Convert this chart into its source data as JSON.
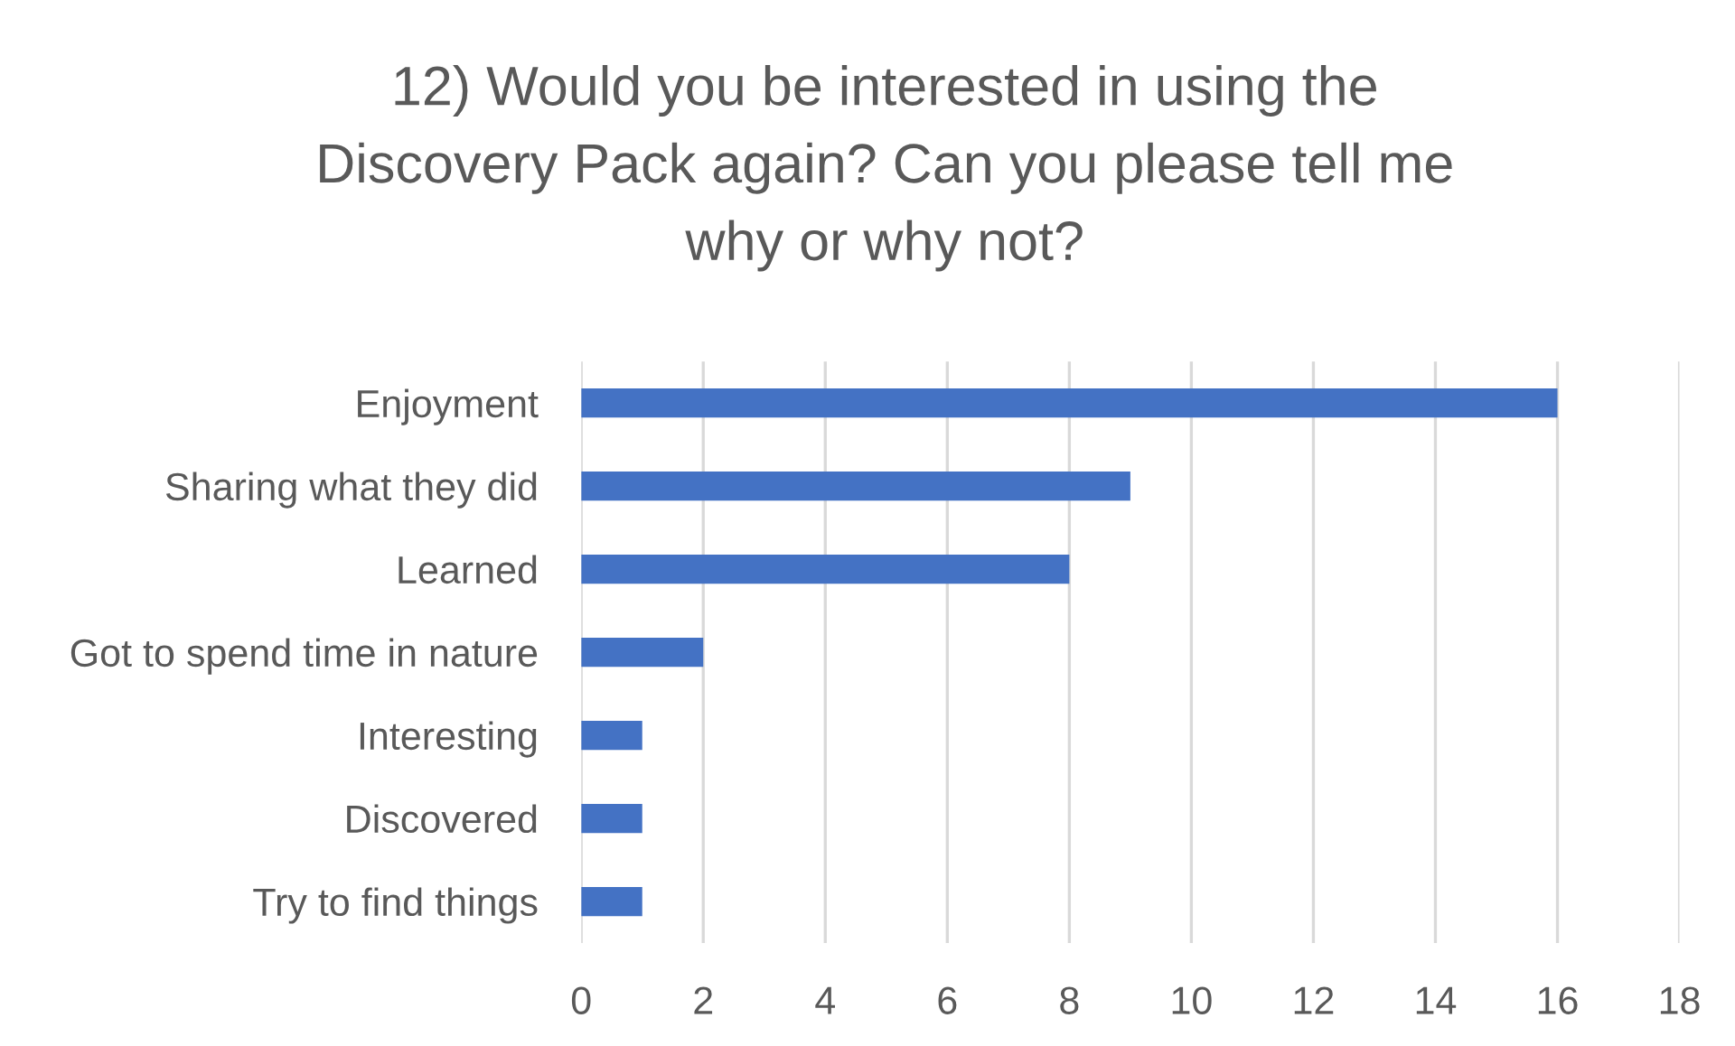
{
  "chart_data": {
    "type": "bar",
    "orientation": "horizontal",
    "title": "12) Would you be interested in using the Discovery Pack again? Can you please tell me why or why not?",
    "categories": [
      "Enjoyment",
      "Sharing what they did",
      "Learned",
      "Got to spend time in nature",
      "Interesting",
      "Discovered",
      "Try to find things"
    ],
    "values": [
      16,
      9,
      8,
      2,
      1,
      1,
      1
    ],
    "color": "#4472c4",
    "xlim": [
      0,
      18
    ],
    "xticks": [
      0,
      2,
      4,
      6,
      8,
      10,
      12,
      14,
      16,
      18
    ],
    "grid": "x",
    "legend": false
  }
}
